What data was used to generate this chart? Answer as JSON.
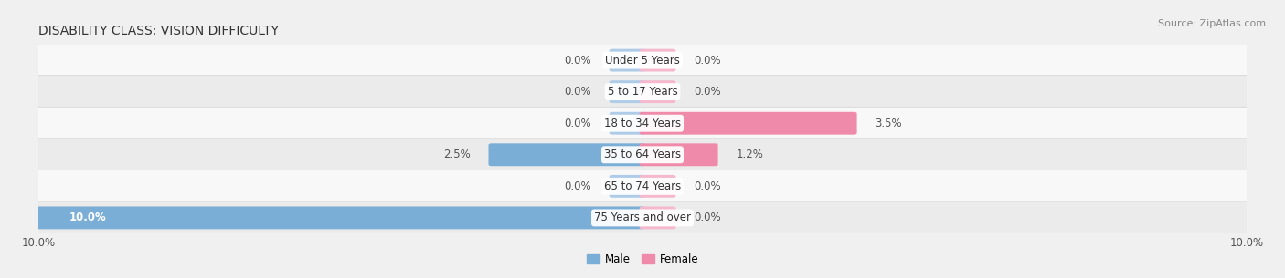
{
  "title": "DISABILITY CLASS: VISION DIFFICULTY",
  "source": "Source: ZipAtlas.com",
  "categories": [
    "Under 5 Years",
    "5 to 17 Years",
    "18 to 34 Years",
    "35 to 64 Years",
    "65 to 74 Years",
    "75 Years and over"
  ],
  "male_values": [
    0.0,
    0.0,
    0.0,
    2.5,
    0.0,
    10.0
  ],
  "female_values": [
    0.0,
    0.0,
    3.5,
    1.2,
    0.0,
    0.0
  ],
  "male_color": "#7aaed6",
  "female_color": "#f08aaa",
  "male_stub_color": "#aecce8",
  "female_stub_color": "#f5b8cc",
  "axis_limit": 10.0,
  "title_fontsize": 10,
  "label_fontsize": 8.5,
  "tick_fontsize": 8.5,
  "source_fontsize": 8
}
